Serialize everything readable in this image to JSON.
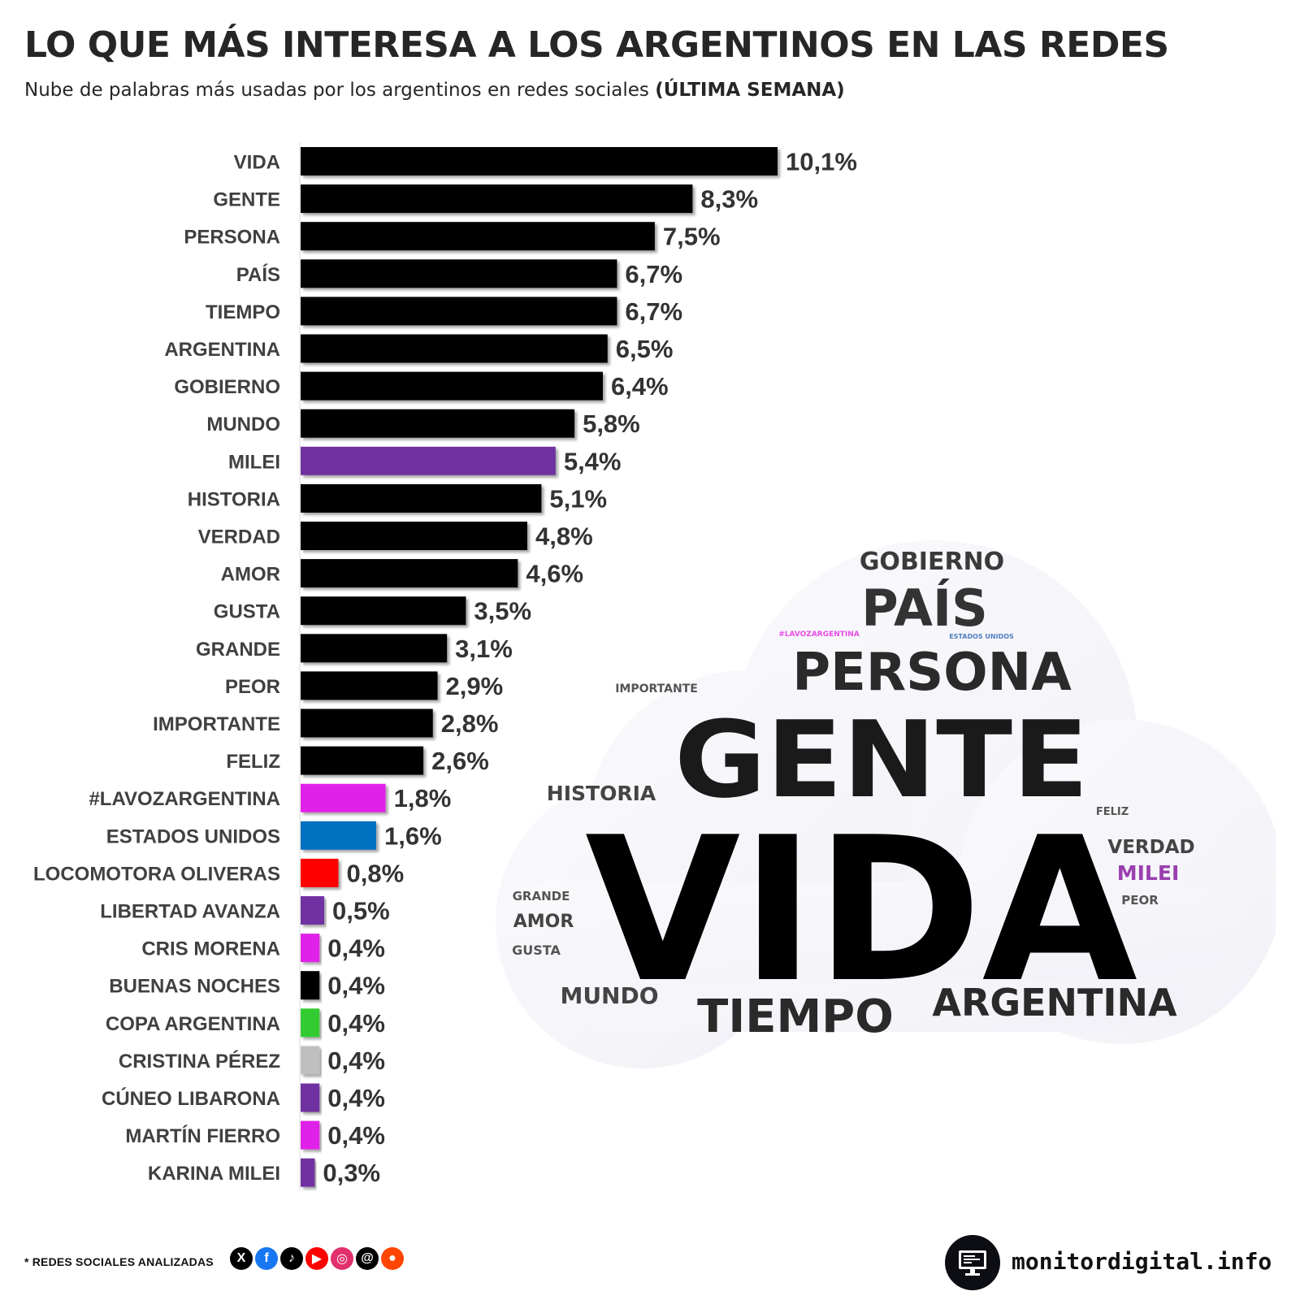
{
  "header": {
    "title": "LO QUE MÁS INTERESA A LOS ARGENTINOS EN LAS REDES",
    "subtitle": "Nube de palabras más usadas por los argentinos en redes sociales",
    "subtitle_bold": "(ÚLTIMA SEMANA)"
  },
  "chart_data": {
    "type": "bar",
    "orientation": "horizontal",
    "title": "LO QUE MÁS INTERESA A LOS ARGENTINOS EN LAS REDES",
    "xlabel": "",
    "ylabel": "",
    "xlim": [
      0,
      10.1
    ],
    "grid": false,
    "legend": "none",
    "categories": [
      "VIDA",
      "GENTE",
      "PERSONA",
      "PAÍS",
      "TIEMPO",
      "ARGENTINA",
      "GOBIERNO",
      "MUNDO",
      "MILEI",
      "HISTORIA",
      "VERDAD",
      "AMOR",
      "GUSTA",
      "GRANDE",
      "PEOR",
      "IMPORTANTE",
      "FELIZ",
      "#LAVOZARGENTINA",
      "ESTADOS UNIDOS",
      "LOCOMOTORA OLIVERAS",
      "LIBERTAD AVANZA",
      "CRIS MORENA",
      "BUENAS NOCHES",
      "COPA ARGENTINA",
      "CRISTINA PÉREZ",
      "CÚNEO LIBARONA",
      "MARTÍN FIERRO",
      "KARINA MILEI"
    ],
    "values": [
      10.1,
      8.3,
      7.5,
      6.7,
      6.7,
      6.5,
      6.4,
      5.8,
      5.4,
      5.1,
      4.8,
      4.6,
      3.5,
      3.1,
      2.9,
      2.8,
      2.6,
      1.8,
      1.6,
      0.8,
      0.5,
      0.4,
      0.4,
      0.4,
      0.4,
      0.4,
      0.4,
      0.3
    ],
    "value_labels": [
      "10,1%",
      "8,3%",
      "7,5%",
      "6,7%",
      "6,7%",
      "6,5%",
      "6,4%",
      "5,8%",
      "5,4%",
      "5,1%",
      "4,8%",
      "4,6%",
      "3,5%",
      "3,1%",
      "2,9%",
      "2,8%",
      "2,6%",
      "1,8%",
      "1,6%",
      "0,8%",
      "0,5%",
      "0,4%",
      "0,4%",
      "0,4%",
      "0,4%",
      "0,4%",
      "0,4%",
      "0,3%"
    ],
    "colors": [
      "#000000",
      "#000000",
      "#000000",
      "#000000",
      "#000000",
      "#000000",
      "#000000",
      "#000000",
      "#7030a0",
      "#000000",
      "#000000",
      "#000000",
      "#000000",
      "#000000",
      "#000000",
      "#000000",
      "#000000",
      "#e020e8",
      "#0070c0",
      "#ff0000",
      "#7030a0",
      "#e020e8",
      "#000000",
      "#33cc33",
      "#bfbfbf",
      "#7030a0",
      "#e020e8",
      "#7030a0"
    ]
  },
  "word_cloud": {
    "words": [
      {
        "text": "GOBIERNO",
        "color": "#3a3a3a"
      },
      {
        "text": "PAÍS",
        "color": "#333333"
      },
      {
        "text": "#LAVOZARGENTINA",
        "color": "#e64ce6"
      },
      {
        "text": "ESTADOS UNIDOS",
        "color": "#4f7fc0"
      },
      {
        "text": "PERSONA",
        "color": "#2a2a2a"
      },
      {
        "text": "IMPORTANTE",
        "color": "#555555"
      },
      {
        "text": "GENTE",
        "color": "#1a1a1a"
      },
      {
        "text": "HISTORIA",
        "color": "#444444"
      },
      {
        "text": "FELIZ",
        "color": "#555555"
      },
      {
        "text": "VIDA",
        "color": "#000000"
      },
      {
        "text": "VERDAD",
        "color": "#444444"
      },
      {
        "text": "MILEI",
        "color": "#9a3fb0"
      },
      {
        "text": "PEOR",
        "color": "#555555"
      },
      {
        "text": "GRANDE",
        "color": "#555555"
      },
      {
        "text": "AMOR",
        "color": "#444444"
      },
      {
        "text": "GUSTA",
        "color": "#555555"
      },
      {
        "text": "MUNDO",
        "color": "#444444"
      },
      {
        "text": "TIEMPO",
        "color": "#2a2a2a"
      },
      {
        "text": "ARGENTINA",
        "color": "#2a2a2a"
      }
    ]
  },
  "footer": {
    "note": "* REDES SOCIALES ANALIZADAS",
    "networks": [
      "X",
      "f",
      "♪",
      "▶",
      "◎",
      "@",
      "●"
    ],
    "network_icons": [
      "x-icon",
      "facebook-icon",
      "tiktok-icon",
      "youtube-icon",
      "instagram-icon",
      "threads-icon",
      "reddit-icon"
    ],
    "network_colors": [
      "#000000",
      "#1877f2",
      "#000000",
      "#ff0000",
      "#e1306c",
      "#000000",
      "#ff4500"
    ],
    "brand": "monitordigital.info"
  }
}
